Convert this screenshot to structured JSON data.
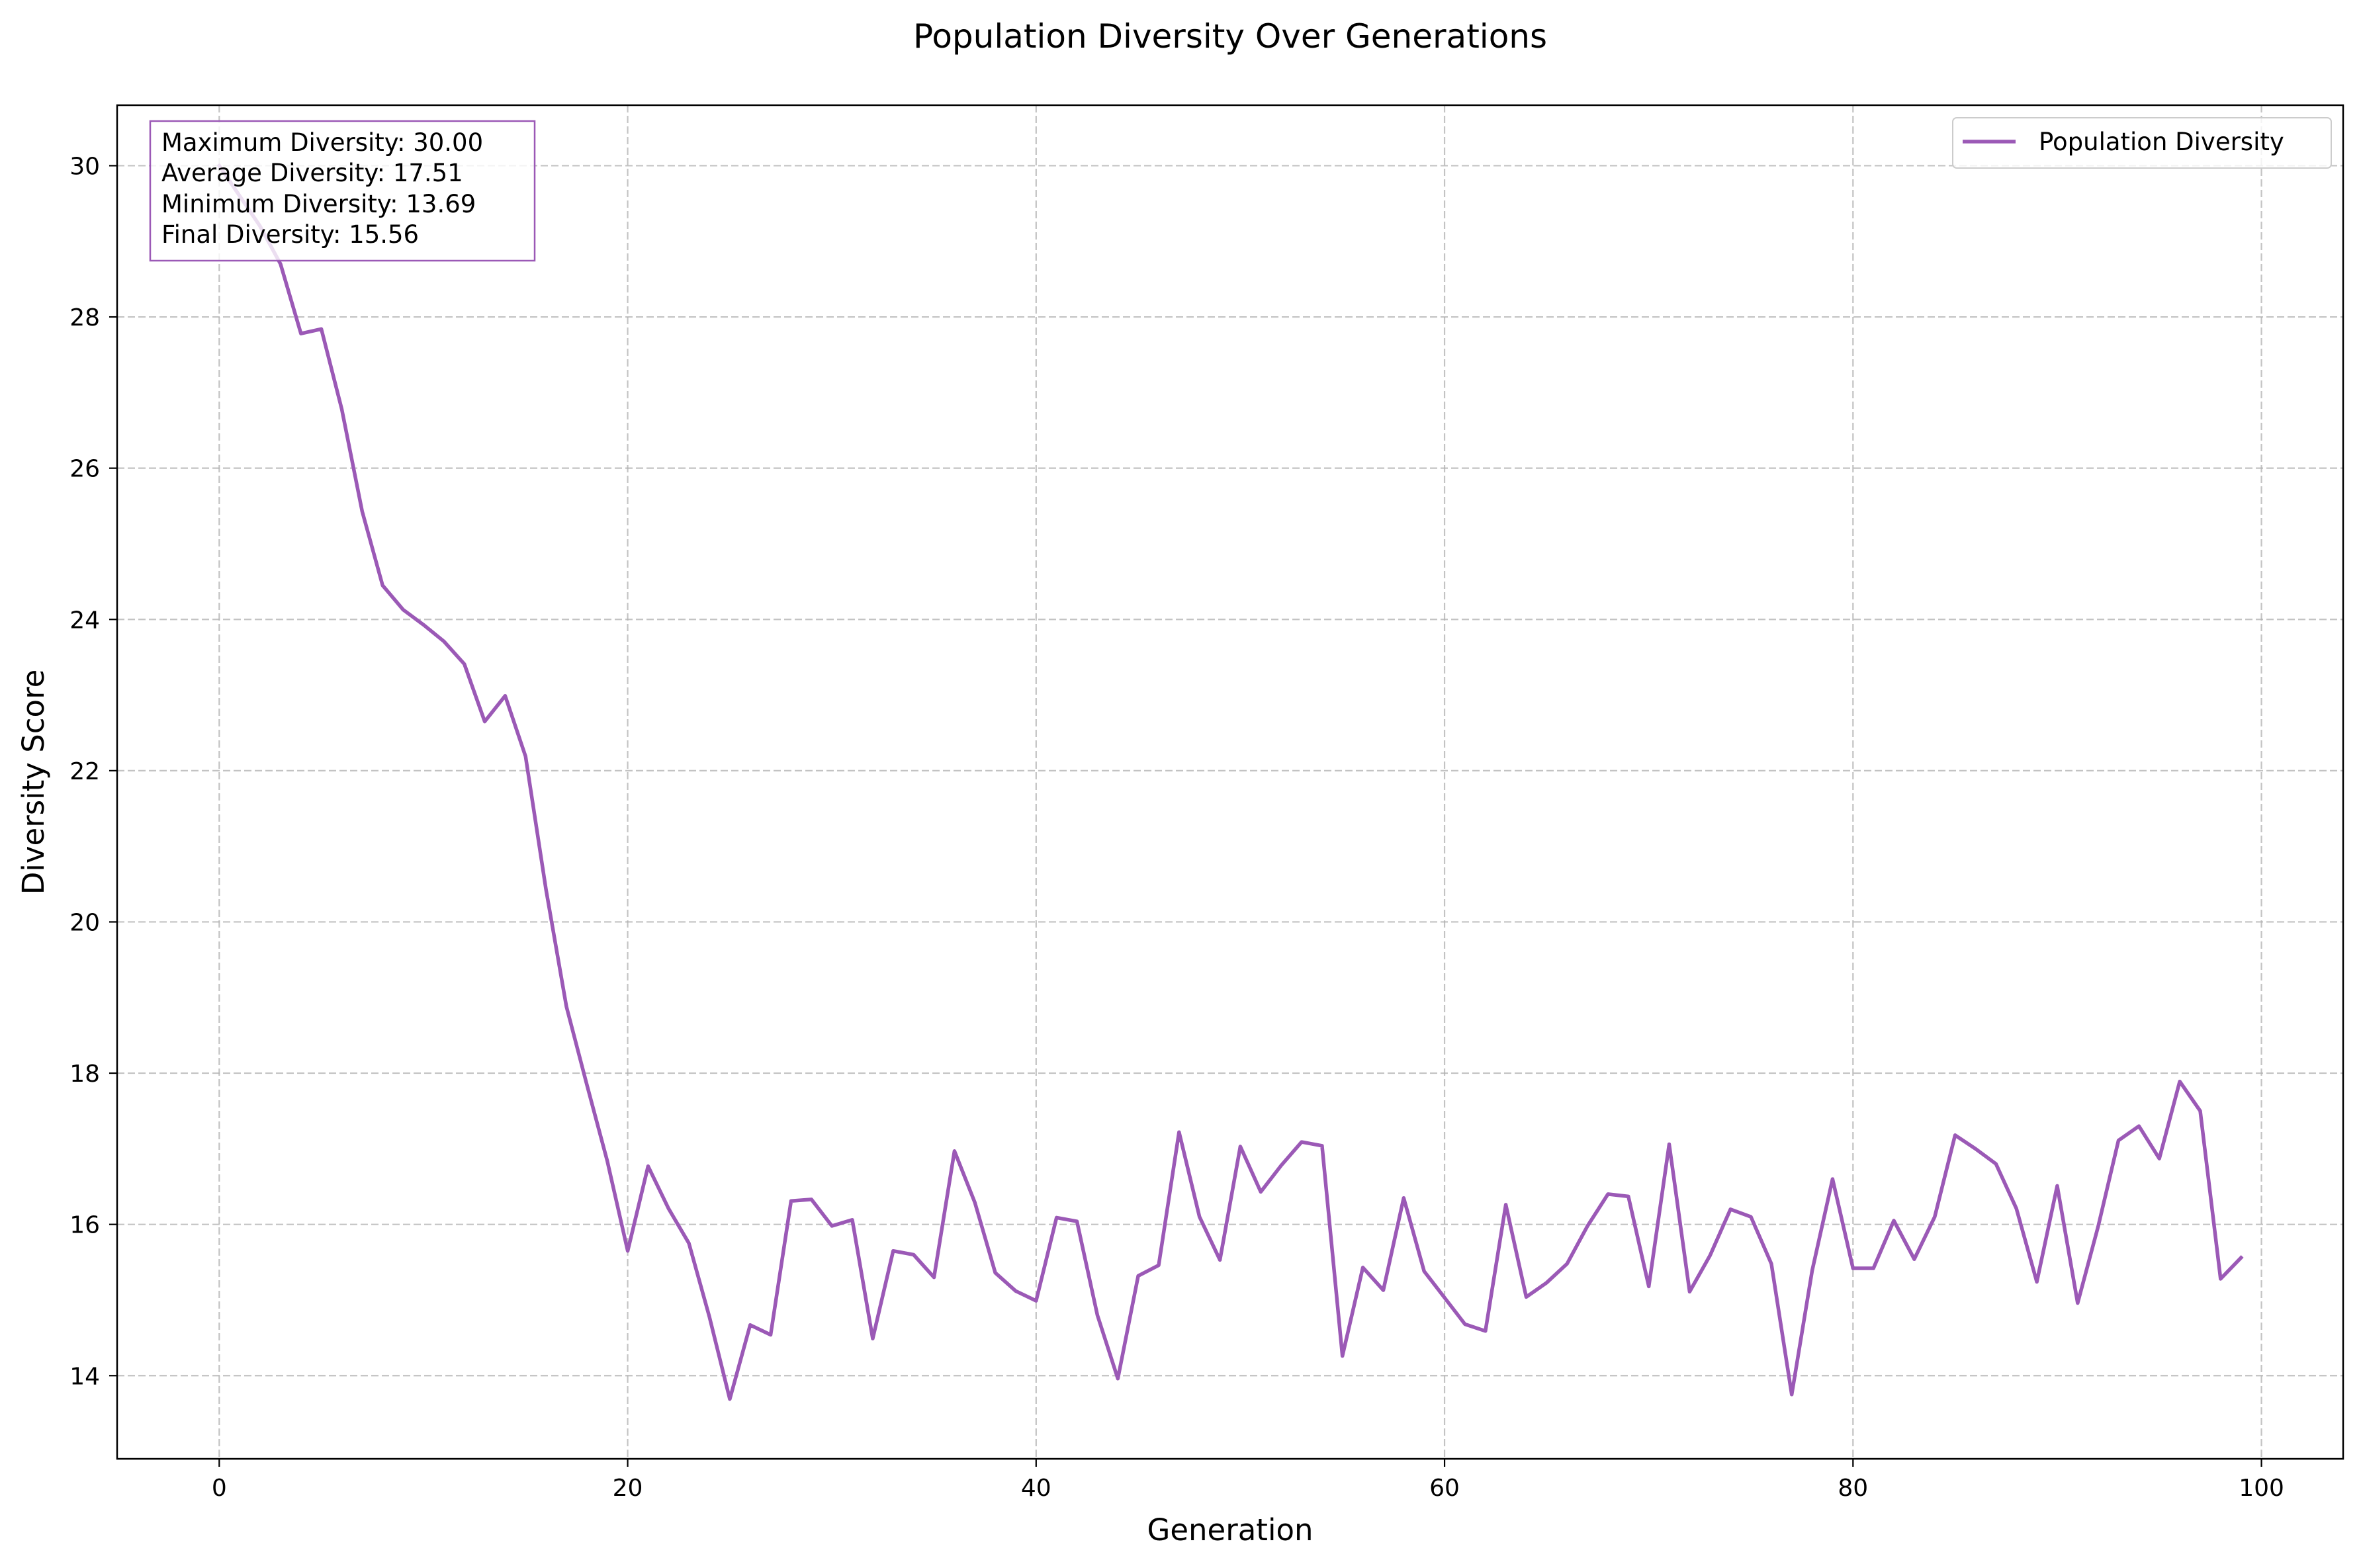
{
  "colors": {
    "series": "#9b59b6",
    "grid": "#b0b0b0",
    "legend_border": "#cccccc"
  },
  "chart_data": {
    "type": "line",
    "title": "Population Diversity Over Generations",
    "xlabel": "Generation",
    "ylabel": "Diversity Score",
    "xlim": [
      -5,
      104
    ],
    "ylim": [
      12.9,
      30.8
    ],
    "xticks": [
      0,
      20,
      40,
      60,
      80,
      100
    ],
    "yticks": [
      14,
      16,
      18,
      20,
      22,
      24,
      26,
      28,
      30
    ],
    "grid": true,
    "grid_style": "dashed",
    "legend": {
      "position": "top-right",
      "entries": [
        "Population Diversity"
      ]
    },
    "annotation": {
      "position": "top-left",
      "lines": [
        "Maximum Diversity: 30.00",
        "Average Diversity: 17.51",
        "Minimum Diversity: 13.69",
        "Final Diversity: 15.56"
      ]
    },
    "series": [
      {
        "name": "Population Diversity",
        "x": [
          0,
          1,
          2,
          3,
          4,
          5,
          6,
          7,
          8,
          9,
          10,
          11,
          12,
          13,
          14,
          15,
          16,
          17,
          18,
          19,
          20,
          21,
          22,
          23,
          24,
          25,
          26,
          27,
          28,
          29,
          30,
          31,
          32,
          33,
          34,
          35,
          36,
          37,
          38,
          39,
          40,
          41,
          42,
          43,
          44,
          45,
          46,
          47,
          48,
          49,
          50,
          51,
          52,
          53,
          54,
          55,
          56,
          57,
          58,
          59,
          60,
          61,
          62,
          63,
          64,
          65,
          66,
          67,
          68,
          69,
          70,
          71,
          72,
          73,
          74,
          75,
          76,
          77,
          78,
          79,
          80,
          81,
          82,
          83,
          84,
          85,
          86,
          87,
          88,
          89,
          90,
          91,
          92,
          93,
          94,
          95,
          96,
          97,
          98,
          99
        ],
        "values": [
          30.0,
          29.6,
          29.2,
          28.7,
          27.78,
          27.84,
          26.78,
          25.43,
          24.45,
          24.13,
          23.93,
          23.71,
          23.41,
          22.65,
          22.99,
          22.19,
          20.43,
          18.88,
          17.85,
          16.84,
          15.65,
          16.77,
          16.21,
          15.75,
          14.78,
          13.69,
          14.67,
          14.54,
          16.31,
          16.33,
          15.98,
          16.06,
          14.49,
          15.65,
          15.6,
          15.3,
          16.97,
          16.29,
          15.36,
          15.12,
          14.99,
          16.09,
          16.04,
          14.8,
          13.96,
          15.32,
          15.46,
          17.22,
          16.1,
          15.53,
          17.03,
          16.43,
          16.78,
          17.09,
          17.04,
          14.26,
          15.43,
          15.13,
          16.35,
          15.38,
          15.03,
          14.68,
          14.59,
          16.26,
          15.04,
          15.23,
          15.48,
          15.98,
          16.4,
          16.37,
          15.18,
          17.06,
          15.11,
          15.59,
          16.2,
          16.1,
          15.48,
          13.75,
          15.39,
          16.6,
          15.42,
          15.42,
          16.05,
          15.54,
          16.1,
          17.18,
          17.0,
          16.8,
          16.21,
          15.24,
          16.51,
          14.96,
          15.97,
          17.11,
          17.3,
          16.87,
          17.89,
          17.5,
          15.28,
          15.56
        ]
      }
    ]
  }
}
